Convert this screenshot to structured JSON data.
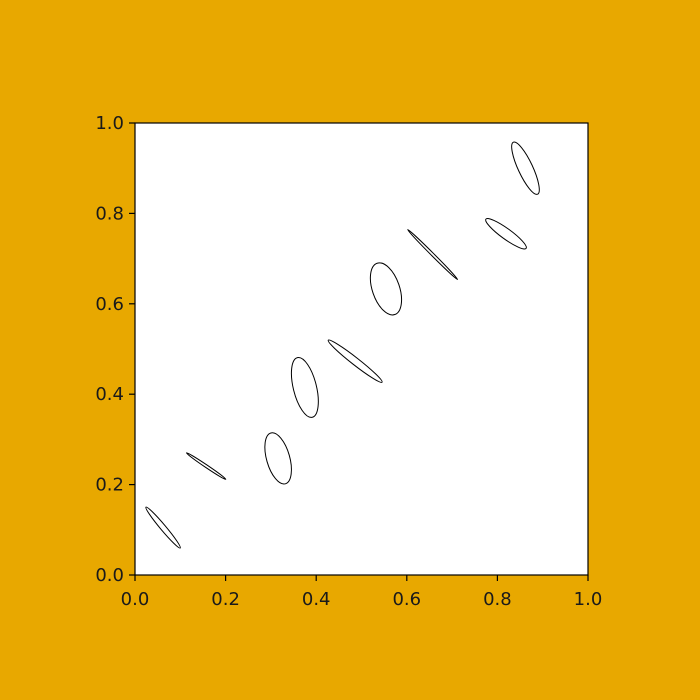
{
  "figure": {
    "background": "#E8A800",
    "axes_background": "#FFFFFF"
  },
  "chart_data": {
    "type": "scatter",
    "marker": "ellipse",
    "title": "",
    "xlabel": "",
    "ylabel": "",
    "xlim": [
      0.0,
      1.0
    ],
    "ylim": [
      0.0,
      1.0
    ],
    "xticks": [
      "0.0",
      "0.2",
      "0.4",
      "0.6",
      "0.8",
      "1.0"
    ],
    "yticks": [
      "0.0",
      "0.2",
      "0.4",
      "0.6",
      "0.8",
      "1.0"
    ],
    "grid": false,
    "legend": "none",
    "ellipses": [
      {
        "x": 0.062,
        "y": 0.105,
        "width": 0.012,
        "height": 0.118,
        "angle": -40
      },
      {
        "x": 0.157,
        "y": 0.241,
        "width": 0.006,
        "height": 0.105,
        "angle": -56
      },
      {
        "x": 0.316,
        "y": 0.258,
        "width": 0.051,
        "height": 0.117,
        "angle": -16
      },
      {
        "x": 0.375,
        "y": 0.415,
        "width": 0.051,
        "height": 0.136,
        "angle": -14
      },
      {
        "x": 0.486,
        "y": 0.473,
        "width": 0.016,
        "height": 0.151,
        "angle": -52
      },
      {
        "x": 0.554,
        "y": 0.633,
        "width": 0.06,
        "height": 0.12,
        "angle": -19
      },
      {
        "x": 0.657,
        "y": 0.709,
        "width": 0.006,
        "height": 0.156,
        "angle": -45
      },
      {
        "x": 0.819,
        "y": 0.755,
        "width": 0.023,
        "height": 0.11,
        "angle": -54
      },
      {
        "x": 0.862,
        "y": 0.9,
        "width": 0.032,
        "height": 0.127,
        "angle": -25
      }
    ]
  }
}
